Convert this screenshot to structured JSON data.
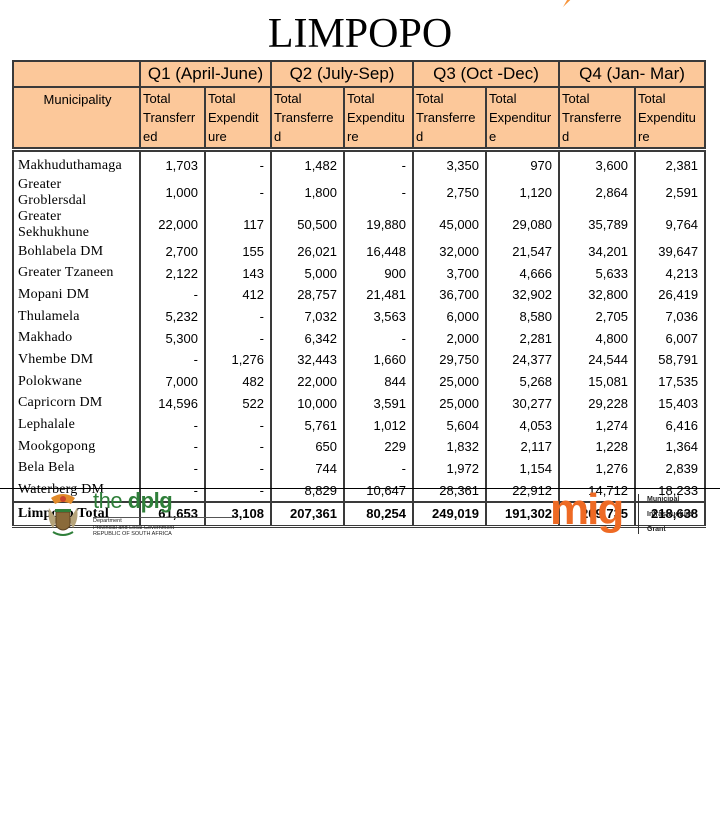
{
  "slide": {
    "title": "LIMPOPO",
    "accent_color": "#f7943a",
    "header_fill_color": "#fcc89a"
  },
  "table": {
    "quarters": [
      {
        "label": "Q1 (April-June)"
      },
      {
        "label": "Q2 (July-Sep)"
      },
      {
        "label": "Q3 (Oct -Dec)"
      },
      {
        "label": "Q4 (Jan- Mar)"
      }
    ],
    "municipality_header": "Municipality",
    "sub_headers": [
      "Total\nTransferr\ned",
      "Total\nExpendit\nure",
      "Total\nTransferre\nd",
      "Total\nExpenditu\nre",
      "Total\nTransferre\nd",
      "Total\nExpenditur\ne",
      "Total\nTransferre\nd",
      "Total\nExpenditu\nre"
    ],
    "rows": [
      {
        "name": "Makhuduthamaga",
        "values": [
          "1,703",
          "-",
          "1,482",
          "-",
          "3,350",
          "970",
          "3,600",
          "2,381"
        ]
      },
      {
        "name": "Greater Groblersdal",
        "values": [
          "1,000",
          "-",
          "1,800",
          "-",
          "2,750",
          "1,120",
          "2,864",
          "2,591"
        ]
      },
      {
        "name": "Greater Sekhukhune",
        "values": [
          "22,000",
          "117",
          "50,500",
          "19,880",
          "45,000",
          "29,080",
          "35,789",
          "9,764"
        ]
      },
      {
        "name": "Bohlabela DM",
        "values": [
          "2,700",
          "155",
          "26,021",
          "16,448",
          "32,000",
          "21,547",
          "34,201",
          "39,647"
        ]
      },
      {
        "name": "Greater Tzaneen",
        "values": [
          "2,122",
          "143",
          "5,000",
          "900",
          "3,700",
          "4,666",
          "5,633",
          "4,213"
        ]
      },
      {
        "name": "Mopani DM",
        "values": [
          "-",
          "412",
          "28,757",
          "21,481",
          "36,700",
          "32,902",
          "32,800",
          "26,419"
        ]
      },
      {
        "name": "Thulamela",
        "values": [
          "5,232",
          "-",
          "7,032",
          "3,563",
          "6,000",
          "8,580",
          "2,705",
          "7,036"
        ]
      },
      {
        "name": "Makhado",
        "values": [
          "5,300",
          "-",
          "6,342",
          "-",
          "2,000",
          "2,281",
          "4,800",
          "6,007"
        ]
      },
      {
        "name": "Vhembe DM",
        "values": [
          "-",
          "1,276",
          "32,443",
          "1,660",
          "29,750",
          "24,377",
          "24,544",
          "58,791"
        ]
      },
      {
        "name": "Polokwane",
        "values": [
          "7,000",
          "482",
          "22,000",
          "844",
          "25,000",
          "5,268",
          "15,081",
          "17,535"
        ]
      },
      {
        "name": "Capricorn DM",
        "values": [
          "14,596",
          "522",
          "10,000",
          "3,591",
          "25,000",
          "30,277",
          "29,228",
          "15,403"
        ]
      },
      {
        "name": "Lephalale",
        "values": [
          "-",
          "-",
          "5,761",
          "1,012",
          "5,604",
          "4,053",
          "1,274",
          "6,416"
        ]
      },
      {
        "name": "Mookgopong",
        "values": [
          "-",
          "-",
          "650",
          "229",
          "1,832",
          "2,117",
          "1,228",
          "1,364"
        ]
      },
      {
        "name": "Bela Bela",
        "values": [
          "-",
          "-",
          "744",
          "-",
          "1,972",
          "1,154",
          "1,276",
          "2,839"
        ]
      },
      {
        "name": "Waterberg DM",
        "values": [
          "-",
          "-",
          "8,829",
          "10,647",
          "28,361",
          "22,912",
          "14,712",
          "18,233"
        ]
      }
    ],
    "total": {
      "name": "Limpopo Total",
      "values": [
        "61,653",
        "3,108",
        "207,361",
        "80,254",
        "249,019",
        "191,302",
        "209,735",
        "218,638"
      ]
    }
  },
  "footer": {
    "dplg": {
      "the": "the ",
      "name": "dplg",
      "line1": "Department",
      "line2": "Provincial and Local Government",
      "line3": "REPUBLIC OF SOUTH AFRICA",
      "brand_color": "#2f7f3a",
      "icon": "coat-of-arms-icon"
    },
    "mig": {
      "logo": "mig",
      "line1": "Municipal",
      "line2": "Infrastructure",
      "line3": "Grant",
      "brand_color": "#ee6a24"
    }
  }
}
